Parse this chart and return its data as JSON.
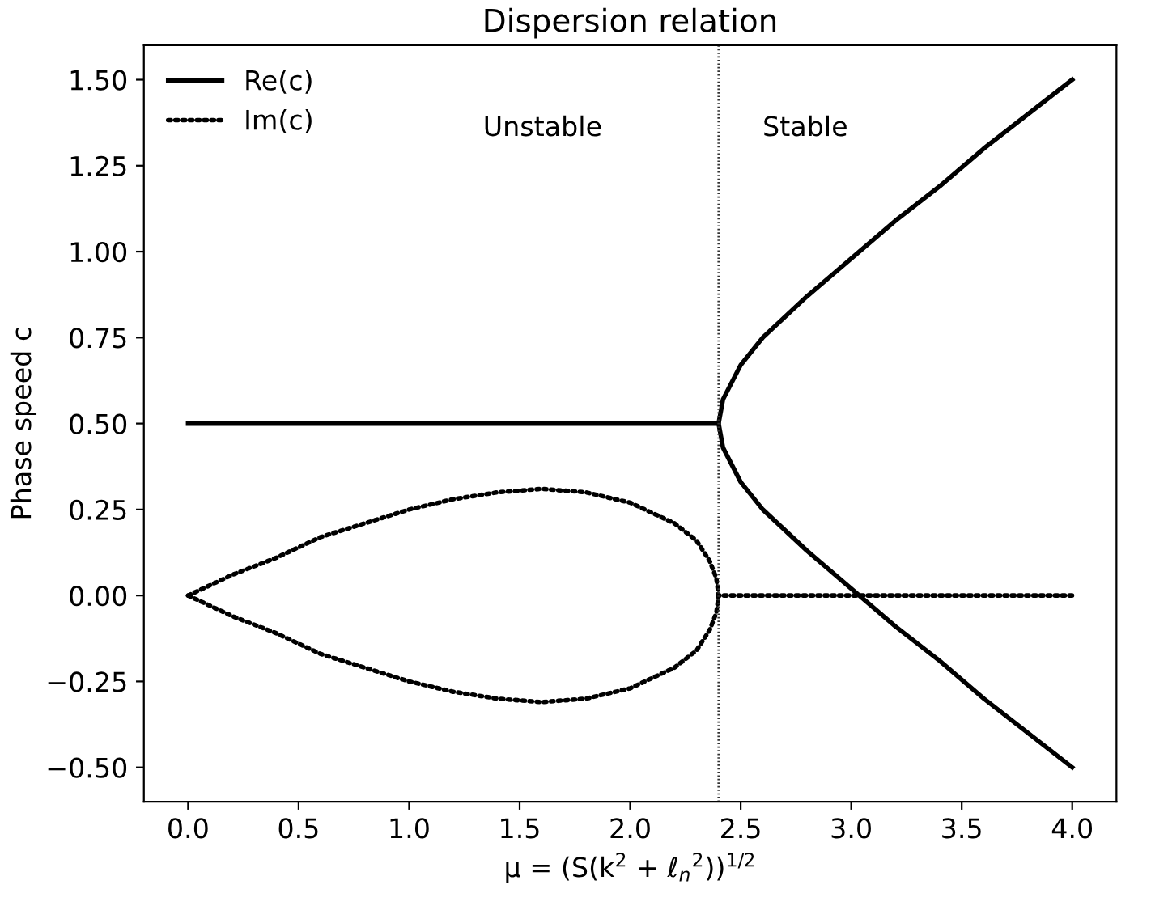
{
  "chart_data": {
    "type": "line",
    "title": "Dispersion relation",
    "xlabel": "μ = (S(k$^{2}$ + ℓ$_{n}$$^{2}$))$^{1/2}$",
    "ylabel": "Phase speed c",
    "xlim": [
      -0.2,
      4.2
    ],
    "ylim": [
      -0.6,
      1.6
    ],
    "xticks": [
      {
        "value": 0,
        "label": "0.0"
      },
      {
        "value": 0.5,
        "label": "0.5"
      },
      {
        "value": 1,
        "label": "1.0"
      },
      {
        "value": 1.5,
        "label": "1.5"
      },
      {
        "value": 2,
        "label": "2.0"
      },
      {
        "value": 2.5,
        "label": "2.5"
      },
      {
        "value": 3,
        "label": "3.0"
      },
      {
        "value": 3.5,
        "label": "3.5"
      },
      {
        "value": 4,
        "label": "4.0"
      }
    ],
    "yticks": [
      {
        "value": -0.5,
        "label": "−0.50"
      },
      {
        "value": -0.25,
        "label": "−0.25"
      },
      {
        "value": 0,
        "label": "0.00"
      },
      {
        "value": 0.25,
        "label": "0.25"
      },
      {
        "value": 0.5,
        "label": "0.50"
      },
      {
        "value": 0.75,
        "label": "0.75"
      },
      {
        "value": 1,
        "label": "1.00"
      },
      {
        "value": 1.25,
        "label": "1.25"
      },
      {
        "value": 1.5,
        "label": "1.50"
      }
    ],
    "series": [
      {
        "name": "Re(c)",
        "color": "#000000",
        "line_style": "solid",
        "x": [
          0,
          2.4,
          2.42,
          2.5,
          2.6,
          2.8,
          3.0,
          3.2,
          3.4,
          3.6,
          3.8,
          4.0
        ],
        "values": [
          0.5,
          0.5,
          0.57,
          0.67,
          0.75,
          0.87,
          0.98,
          1.09,
          1.19,
          1.3,
          1.4,
          1.5
        ]
      },
      {
        "color": "#000000",
        "line_style": "solid",
        "x": [
          2.4,
          2.42,
          2.5,
          2.6,
          2.8,
          3.0,
          3.2,
          3.4,
          3.6,
          3.8,
          4.0
        ],
        "values": [
          0.5,
          0.43,
          0.33,
          0.25,
          0.13,
          0.02,
          -0.09,
          -0.19,
          -0.3,
          -0.4,
          -0.5
        ]
      },
      {
        "name": "Im(c)",
        "color": "#000000",
        "line_style": "dotted",
        "x": [
          0,
          0.2,
          0.4,
          0.6,
          0.8,
          1.0,
          1.2,
          1.4,
          1.6,
          1.8,
          2.0,
          2.2,
          2.3,
          2.36,
          2.39,
          2.4,
          4.0
        ],
        "values": [
          0,
          0.06,
          0.11,
          0.17,
          0.21,
          0.25,
          0.28,
          0.3,
          0.31,
          0.3,
          0.27,
          0.21,
          0.16,
          0.1,
          0.05,
          0,
          0
        ]
      },
      {
        "color": "#000000",
        "line_style": "dotted",
        "x": [
          0,
          0.2,
          0.4,
          0.6,
          0.8,
          1.0,
          1.2,
          1.4,
          1.6,
          1.8,
          2.0,
          2.2,
          2.3,
          2.36,
          2.39,
          2.4
        ],
        "values": [
          0,
          -0.06,
          -0.11,
          -0.17,
          -0.21,
          -0.25,
          -0.28,
          -0.3,
          -0.31,
          -0.3,
          -0.27,
          -0.21,
          -0.16,
          -0.1,
          -0.05,
          0
        ]
      }
    ],
    "ref_lines": [
      {
        "axis": "x",
        "value": 2.4,
        "color": "#333333",
        "line_style": "dotted"
      }
    ],
    "annotations": [
      "Unstable",
      "Stable"
    ],
    "legend": "top left",
    "grid": false
  }
}
